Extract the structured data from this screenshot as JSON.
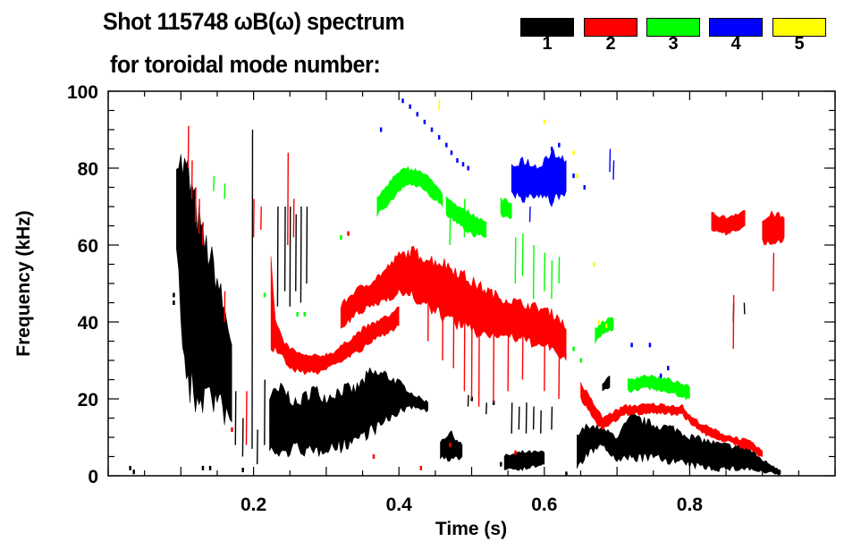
{
  "chart_data": {
    "type": "heatmap",
    "title": "Shot 115748 ωB(ω) spectrum",
    "subtitle": "for toroidal mode number:",
    "xlabel": "Time (s)",
    "ylabel": "Frequency (kHz)",
    "xlim": [
      0,
      1.0
    ],
    "ylim": [
      0,
      100
    ],
    "xticks": [
      "0.2",
      "0.4",
      "0.6",
      "0.8"
    ],
    "xtick_values": [
      0.2,
      0.4,
      0.6,
      0.8
    ],
    "yticks": [
      "0",
      "20",
      "40",
      "60",
      "80",
      "100"
    ],
    "ytick_values": [
      0,
      20,
      40,
      60,
      80,
      100
    ],
    "legend": {
      "placement": "top-right",
      "entries": [
        {
          "label": "1",
          "color": "#000000"
        },
        {
          "label": "2",
          "color": "#ff0000"
        },
        {
          "label": "3",
          "color": "#00ff00"
        },
        {
          "label": "4",
          "color": "#0000ff"
        },
        {
          "label": "5",
          "color": "#ffff00"
        }
      ]
    },
    "series": [
      {
        "name": "1",
        "color": "#000000",
        "bands": [
          [
            [
              0.094,
              62,
              82
            ],
            [
              0.1,
              42,
              80
            ],
            [
              0.11,
              24,
              76
            ],
            [
              0.12,
              22,
              68
            ],
            [
              0.13,
              22,
              60
            ],
            [
              0.14,
              22,
              56
            ],
            [
              0.15,
              20,
              50
            ],
            [
              0.16,
              17,
              42
            ],
            [
              0.17,
              14,
              34
            ]
          ],
          [
            [
              0.222,
              7,
              20
            ],
            [
              0.24,
              6,
              22
            ],
            [
              0.26,
              8,
              18
            ],
            [
              0.28,
              6,
              22
            ],
            [
              0.3,
              8,
              20
            ],
            [
              0.32,
              8,
              22
            ],
            [
              0.34,
              10,
              22
            ],
            [
              0.36,
              12,
              26
            ],
            [
              0.38,
              14,
              26
            ],
            [
              0.4,
              17,
              24
            ],
            [
              0.42,
              18,
              21
            ],
            [
              0.44,
              17,
              19
            ]
          ],
          [
            [
              0.457,
              5,
              9
            ],
            [
              0.47,
              4,
              11
            ],
            [
              0.487,
              5,
              8
            ]
          ],
          [
            [
              0.545,
              2,
              5
            ],
            [
              0.57,
              2,
              6
            ],
            [
              0.6,
              3,
              6
            ]
          ],
          [
            [
              0.645,
              2,
              10
            ],
            [
              0.66,
              6,
              13
            ],
            [
              0.68,
              8,
              12
            ],
            [
              0.7,
              4,
              10
            ],
            [
              0.72,
              5,
              15
            ],
            [
              0.75,
              5,
              13
            ],
            [
              0.78,
              4,
              12
            ],
            [
              0.8,
              3,
              10
            ],
            [
              0.84,
              2,
              8
            ],
            [
              0.88,
              2,
              7
            ],
            [
              0.9,
              1,
              4
            ],
            [
              0.925,
              0.5,
              1.5
            ]
          ],
          [
            [
              0.68,
              22,
              24
            ],
            [
              0.69,
              23,
              26
            ]
          ]
        ],
        "streaks": [
          [
            0.198,
            7,
            90
          ],
          [
            0.175,
            8,
            22
          ],
          [
            0.185,
            5,
            15
          ],
          [
            0.205,
            3,
            12
          ],
          [
            0.215,
            8,
            25
          ],
          [
            0.233,
            44,
            70
          ],
          [
            0.243,
            48,
            70
          ],
          [
            0.25,
            44,
            70
          ],
          [
            0.258,
            48,
            68
          ],
          [
            0.265,
            45,
            70
          ],
          [
            0.273,
            50,
            70
          ],
          [
            0.555,
            11,
            19
          ],
          [
            0.565,
            12,
            18
          ],
          [
            0.575,
            11,
            19
          ],
          [
            0.585,
            12,
            18
          ],
          [
            0.595,
            11,
            17
          ],
          [
            0.61,
            12,
            18
          ],
          [
            0.875,
            45,
            42
          ],
          [
            0.86,
            40,
            45
          ],
          [
            0.495,
            18,
            21
          ],
          [
            0.52,
            16,
            19
          ]
        ],
        "dots": [
          [
            0.03,
            2
          ],
          [
            0.035,
            1
          ],
          [
            0.13,
            2
          ],
          [
            0.14,
            2
          ],
          [
            0.185,
            1.5
          ],
          [
            0.5,
            20
          ],
          [
            0.53,
            19
          ],
          [
            0.54,
            3
          ],
          [
            0.63,
            0.5
          ],
          [
            0.09,
            47
          ],
          [
            0.09,
            45
          ]
        ]
      },
      {
        "name": "2",
        "color": "#ff0000",
        "bands": [
          [
            [
              0.224,
              35,
              55
            ],
            [
              0.23,
              33,
              40
            ],
            [
              0.24,
              31,
              35
            ],
            [
              0.25,
              28,
              33
            ],
            [
              0.27,
              27,
              31
            ],
            [
              0.29,
              27,
              31
            ],
            [
              0.31,
              29,
              32
            ],
            [
              0.33,
              31,
              35
            ],
            [
              0.35,
              33,
              38
            ],
            [
              0.37,
              36,
              40
            ],
            [
              0.39,
              38,
              42
            ],
            [
              0.4,
              39,
              44
            ]
          ],
          [
            [
              0.32,
              38,
              44
            ],
            [
              0.34,
              42,
              48
            ],
            [
              0.36,
              44,
              50
            ],
            [
              0.38,
              46,
              53
            ],
            [
              0.4,
              48,
              57
            ],
            [
              0.42,
              47,
              58
            ],
            [
              0.44,
              44,
              56
            ],
            [
              0.46,
              42,
              55
            ],
            [
              0.48,
              40,
              53
            ],
            [
              0.5,
              38,
              50
            ],
            [
              0.52,
              37,
              48
            ],
            [
              0.54,
              37,
              46
            ],
            [
              0.56,
              36,
              45
            ],
            [
              0.58,
              35,
              44
            ],
            [
              0.6,
              34,
              43
            ],
            [
              0.62,
              32,
              41
            ],
            [
              0.63,
              30,
              38
            ]
          ],
          [
            [
              0.65,
              20,
              24
            ],
            [
              0.66,
              17,
              21
            ],
            [
              0.68,
              12,
              15
            ],
            [
              0.71,
              16,
              18
            ],
            [
              0.75,
              16.5,
              18.5
            ],
            [
              0.79,
              16,
              18
            ],
            [
              0.8,
              14,
              15.5
            ],
            [
              0.82,
              11,
              13
            ],
            [
              0.85,
              9,
              10.5
            ],
            [
              0.88,
              7,
              9
            ],
            [
              0.9,
              5,
              6.5
            ]
          ],
          [
            [
              0.83,
              64,
              68
            ],
            [
              0.85,
              63,
              67
            ],
            [
              0.876,
              65,
              69
            ]
          ],
          [
            [
              0.9,
              61,
              66
            ],
            [
              0.915,
              60,
              68
            ],
            [
              0.93,
              62,
              67
            ]
          ]
        ],
        "streaks": [
          [
            0.11,
            80,
            91
          ],
          [
            0.115,
            72,
            82
          ],
          [
            0.12,
            66,
            75
          ],
          [
            0.125,
            63,
            72
          ],
          [
            0.13,
            60,
            66
          ],
          [
            0.16,
            40,
            48
          ],
          [
            0.19,
            8,
            22
          ],
          [
            0.2,
            62,
            72
          ],
          [
            0.21,
            64,
            70
          ],
          [
            0.247,
            60,
            84
          ],
          [
            0.255,
            62,
            72
          ],
          [
            0.44,
            35,
            55
          ],
          [
            0.46,
            30,
            50
          ],
          [
            0.475,
            28,
            45
          ],
          [
            0.49,
            22,
            45
          ],
          [
            0.5,
            20,
            45
          ],
          [
            0.51,
            18,
            42
          ],
          [
            0.53,
            19,
            40
          ],
          [
            0.55,
            22,
            40
          ],
          [
            0.57,
            25,
            38
          ],
          [
            0.6,
            22,
            36
          ],
          [
            0.62,
            20,
            34
          ],
          [
            0.86,
            33,
            47
          ],
          [
            0.915,
            48,
            58
          ]
        ],
        "dots": [
          [
            0.17,
            12
          ],
          [
            0.33,
            63
          ],
          [
            0.47,
            8
          ],
          [
            0.56,
            6
          ],
          [
            0.43,
            2
          ],
          [
            0.365,
            5
          ]
        ]
      },
      {
        "name": "3",
        "color": "#00ff00",
        "bands": [
          [
            [
              0.37,
              68,
              72
            ],
            [
              0.39,
              72,
              77
            ],
            [
              0.41,
              76,
              80
            ],
            [
              0.43,
              75,
              79
            ],
            [
              0.45,
              72,
              76
            ],
            [
              0.46,
              70,
              73
            ]
          ],
          [
            [
              0.465,
              68,
              72
            ],
            [
              0.48,
              66,
              70
            ],
            [
              0.5,
              63,
              68
            ],
            [
              0.52,
              62,
              66
            ]
          ],
          [
            [
              0.54,
              68,
              72
            ],
            [
              0.555,
              67,
              71
            ]
          ],
          [
            [
              0.67,
              35,
              38
            ],
            [
              0.68,
              37,
              40
            ],
            [
              0.695,
              38,
              41
            ]
          ],
          [
            [
              0.715,
              22,
              25
            ],
            [
              0.74,
              23,
              26
            ],
            [
              0.77,
              22,
              25
            ],
            [
              0.8,
              20,
              23
            ]
          ]
        ],
        "streaks": [
          [
            0.56,
            50,
            62
          ],
          [
            0.57,
            52,
            63
          ],
          [
            0.585,
            46,
            60
          ],
          [
            0.6,
            48,
            58
          ],
          [
            0.61,
            46,
            56
          ],
          [
            0.62,
            50,
            57
          ],
          [
            0.145,
            74,
            78
          ],
          [
            0.16,
            72,
            76
          ],
          [
            0.47,
            60,
            68
          ],
          [
            0.49,
            62,
            72
          ]
        ],
        "dots": [
          [
            0.32,
            62
          ],
          [
            0.215,
            47
          ],
          [
            0.26,
            42
          ],
          [
            0.27,
            42
          ],
          [
            0.64,
            33
          ],
          [
            0.65,
            30
          ]
        ]
      },
      {
        "name": "4",
        "color": "#0000ff",
        "bands": [
          [
            [
              0.555,
              74,
              80
            ],
            [
              0.57,
              72,
              82
            ],
            [
              0.59,
              73,
              80
            ],
            [
              0.61,
              72,
              84
            ],
            [
              0.63,
              74,
              82
            ]
          ]
        ],
        "streaks": [
          [
            0.69,
            79,
            85
          ],
          [
            0.695,
            77,
            82
          ],
          [
            0.58,
            66,
            70
          ],
          [
            0.61,
            70,
            77
          ]
        ],
        "dots": [
          [
            0.405,
            97.5
          ],
          [
            0.415,
            96
          ],
          [
            0.425,
            94
          ],
          [
            0.435,
            92
          ],
          [
            0.445,
            90
          ],
          [
            0.455,
            88
          ],
          [
            0.465,
            86
          ],
          [
            0.472,
            84
          ],
          [
            0.48,
            82
          ],
          [
            0.488,
            81
          ],
          [
            0.495,
            80
          ],
          [
            0.375,
            90
          ],
          [
            0.61,
            85
          ],
          [
            0.62,
            86
          ],
          [
            0.64,
            78
          ],
          [
            0.655,
            75
          ],
          [
            0.72,
            34
          ],
          [
            0.745,
            34
          ],
          [
            0.77,
            28
          ],
          [
            0.76,
            26
          ]
        ]
      },
      {
        "name": "5",
        "color": "#ffff00",
        "bands": [],
        "streaks": [
          [
            0.455,
            95,
            98
          ]
        ],
        "dots": [
          [
            0.6,
            92
          ],
          [
            0.64,
            84
          ],
          [
            0.645,
            78
          ],
          [
            0.668,
            55
          ],
          [
            0.675,
            40
          ],
          [
            0.685,
            39
          ]
        ]
      }
    ]
  }
}
